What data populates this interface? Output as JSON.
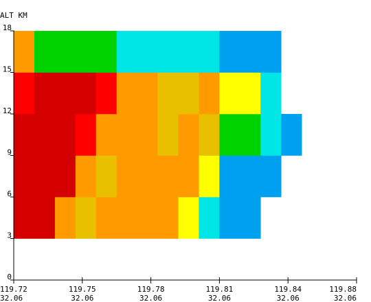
{
  "chart_data": {
    "type": "heatmap",
    "title": "",
    "ylabel": "ALT KM",
    "xlabel": "",
    "ylim": [
      0,
      18
    ],
    "xlim": [
      0,
      5
    ],
    "y_ticks": [
      {
        "value": 0,
        "label": "0"
      },
      {
        "value": 3,
        "label": "3"
      },
      {
        "value": 6,
        "label": "6"
      },
      {
        "value": 9,
        "label": "9"
      },
      {
        "value": 12,
        "label": "12"
      },
      {
        "value": 15,
        "label": "15"
      },
      {
        "value": 18,
        "label": "18"
      }
    ],
    "x_ticks": [
      {
        "value": 0,
        "line1": "119.72",
        "line2": "32.06"
      },
      {
        "value": 1,
        "line1": "119.75",
        "line2": "32.06"
      },
      {
        "value": 2,
        "line1": "119.78",
        "line2": "32.06"
      },
      {
        "value": 3,
        "line1": "119.81",
        "line2": "32.06"
      },
      {
        "value": 4,
        "line1": "119.84",
        "line2": "32.06"
      },
      {
        "value": 5,
        "line1": "119.88",
        "line2": "32.06"
      }
    ],
    "palette": {
      "dark-red": "#d40000",
      "red": "#ff0000",
      "orange": "#ff9a00",
      "gold": "#e8c000",
      "yellow": "#ffff00",
      "green": "#00d200",
      "cyan": "#00e6e6",
      "blue": "#00a0f0"
    },
    "cells": [
      {
        "x0": 0.0,
        "x1": 0.6,
        "y0": 0.6,
        "y1": 1.2,
        "c": "dark-red"
      },
      {
        "x0": 0.6,
        "x1": 0.9,
        "y0": 0.6,
        "y1": 1.2,
        "c": "orange"
      },
      {
        "x0": 0.9,
        "x1": 1.2,
        "y0": 0.6,
        "y1": 1.2,
        "c": "gold"
      },
      {
        "x0": 1.2,
        "x1": 2.4,
        "y0": 0.6,
        "y1": 1.2,
        "c": "orange"
      },
      {
        "x0": 2.4,
        "x1": 2.7,
        "y0": 0.6,
        "y1": 1.2,
        "c": "yellow"
      },
      {
        "x0": 2.7,
        "x1": 3.0,
        "y0": 0.6,
        "y1": 1.2,
        "c": "cyan"
      },
      {
        "x0": 3.0,
        "x1": 3.6,
        "y0": 0.6,
        "y1": 1.2,
        "c": "blue"
      },
      {
        "x0": 0.0,
        "x1": 0.9,
        "y0": 1.2,
        "y1": 1.8,
        "c": "dark-red"
      },
      {
        "x0": 0.9,
        "x1": 1.2,
        "y0": 1.2,
        "y1": 1.8,
        "c": "orange"
      },
      {
        "x0": 1.2,
        "x1": 1.5,
        "y0": 1.2,
        "y1": 1.8,
        "c": "gold"
      },
      {
        "x0": 1.5,
        "x1": 2.7,
        "y0": 1.2,
        "y1": 1.8,
        "c": "orange"
      },
      {
        "x0": 2.7,
        "x1": 3.0,
        "y0": 1.2,
        "y1": 1.8,
        "c": "yellow"
      },
      {
        "x0": 3.0,
        "x1": 3.9,
        "y0": 1.2,
        "y1": 1.8,
        "c": "blue"
      },
      {
        "x0": 0.0,
        "x1": 0.9,
        "y0": 1.8,
        "y1": 2.4,
        "c": "dark-red"
      },
      {
        "x0": 0.9,
        "x1": 1.2,
        "y0": 1.8,
        "y1": 2.4,
        "c": "red"
      },
      {
        "x0": 1.2,
        "x1": 2.1,
        "y0": 1.8,
        "y1": 2.4,
        "c": "orange"
      },
      {
        "x0": 2.1,
        "x1": 2.4,
        "y0": 1.8,
        "y1": 2.4,
        "c": "gold"
      },
      {
        "x0": 2.4,
        "x1": 2.7,
        "y0": 1.8,
        "y1": 2.4,
        "c": "orange"
      },
      {
        "x0": 2.7,
        "x1": 3.0,
        "y0": 1.8,
        "y1": 2.4,
        "c": "gold"
      },
      {
        "x0": 3.0,
        "x1": 3.6,
        "y0": 1.8,
        "y1": 2.4,
        "c": "green"
      },
      {
        "x0": 3.6,
        "x1": 3.9,
        "y0": 1.8,
        "y1": 2.4,
        "c": "cyan"
      },
      {
        "x0": 3.9,
        "x1": 4.2,
        "y0": 1.8,
        "y1": 2.4,
        "c": "blue"
      },
      {
        "x0": 0.0,
        "x1": 0.3,
        "y0": 2.4,
        "y1": 3.0,
        "c": "red"
      },
      {
        "x0": 0.3,
        "x1": 1.2,
        "y0": 2.4,
        "y1": 3.0,
        "c": "dark-red"
      },
      {
        "x0": 1.2,
        "x1": 1.5,
        "y0": 2.4,
        "y1": 3.0,
        "c": "red"
      },
      {
        "x0": 1.5,
        "x1": 2.1,
        "y0": 2.4,
        "y1": 3.0,
        "c": "orange"
      },
      {
        "x0": 2.1,
        "x1": 2.7,
        "y0": 2.4,
        "y1": 3.0,
        "c": "gold"
      },
      {
        "x0": 2.7,
        "x1": 3.0,
        "y0": 2.4,
        "y1": 3.0,
        "c": "orange"
      },
      {
        "x0": 3.0,
        "x1": 3.6,
        "y0": 2.4,
        "y1": 3.0,
        "c": "yellow"
      },
      {
        "x0": 3.6,
        "x1": 3.9,
        "y0": 2.4,
        "y1": 3.0,
        "c": "cyan"
      },
      {
        "x0": 0.0,
        "x1": 0.3,
        "y0": 3.0,
        "y1": 3.6,
        "c": "orange"
      },
      {
        "x0": 0.3,
        "x1": 1.5,
        "y0": 3.0,
        "y1": 3.6,
        "c": "green"
      },
      {
        "x0": 1.5,
        "x1": 3.0,
        "y0": 3.0,
        "y1": 3.6,
        "c": "cyan"
      },
      {
        "x0": 3.0,
        "x1": 3.9,
        "y0": 3.0,
        "y1": 3.6,
        "c": "blue"
      }
    ]
  }
}
